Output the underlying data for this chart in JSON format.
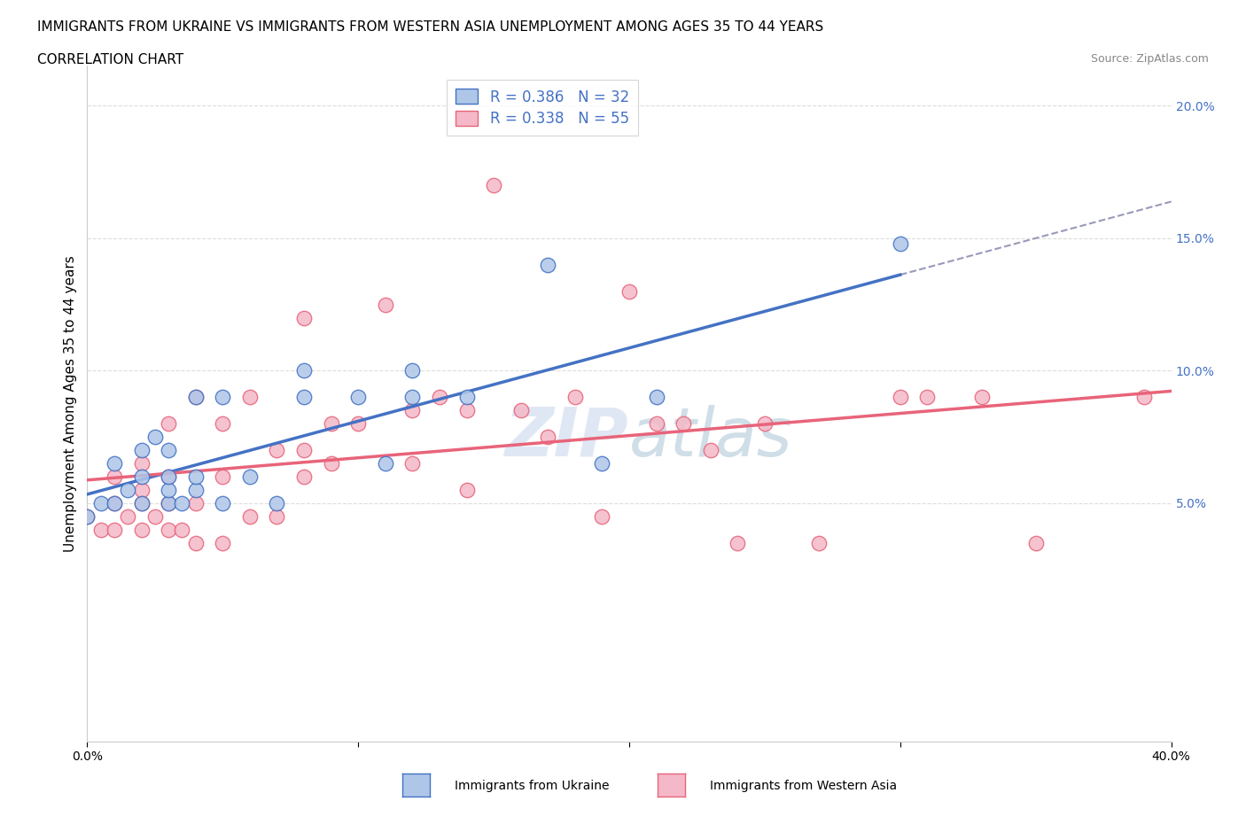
{
  "title_line1": "IMMIGRANTS FROM UKRAINE VS IMMIGRANTS FROM WESTERN ASIA UNEMPLOYMENT AMONG AGES 35 TO 44 YEARS",
  "title_line2": "CORRELATION CHART",
  "source_text": "Source: ZipAtlas.com",
  "ylabel": "Unemployment Among Ages 35 to 44 years",
  "xlim": [
    0.0,
    0.4
  ],
  "ylim": [
    -0.04,
    0.215
  ],
  "ukraine_color": "#aec6e8",
  "ukraine_edge_color": "#4472c4",
  "western_asia_color": "#f4b8c8",
  "western_asia_edge_color": "#e8647a",
  "ukraine_R": 0.386,
  "ukraine_N": 32,
  "western_asia_R": 0.338,
  "western_asia_N": 55,
  "legend_R_color": "#4472c4",
  "watermark": "ZIPatlas",
  "ukraine_scatter_x": [
    0.0,
    0.005,
    0.01,
    0.01,
    0.015,
    0.02,
    0.02,
    0.02,
    0.025,
    0.03,
    0.03,
    0.03,
    0.03,
    0.035,
    0.04,
    0.04,
    0.04,
    0.05,
    0.05,
    0.06,
    0.07,
    0.08,
    0.08,
    0.1,
    0.11,
    0.12,
    0.12,
    0.14,
    0.17,
    0.19,
    0.21,
    0.3
  ],
  "ukraine_scatter_y": [
    0.045,
    0.05,
    0.05,
    0.065,
    0.055,
    0.05,
    0.06,
    0.07,
    0.075,
    0.05,
    0.055,
    0.06,
    0.07,
    0.05,
    0.055,
    0.06,
    0.09,
    0.05,
    0.09,
    0.06,
    0.05,
    0.09,
    0.1,
    0.09,
    0.065,
    0.09,
    0.1,
    0.09,
    0.14,
    0.065,
    0.09,
    0.148
  ],
  "western_asia_scatter_x": [
    0.0,
    0.005,
    0.01,
    0.01,
    0.01,
    0.015,
    0.02,
    0.02,
    0.02,
    0.02,
    0.025,
    0.03,
    0.03,
    0.03,
    0.03,
    0.035,
    0.04,
    0.04,
    0.04,
    0.05,
    0.05,
    0.05,
    0.06,
    0.06,
    0.07,
    0.07,
    0.08,
    0.08,
    0.08,
    0.09,
    0.09,
    0.1,
    0.11,
    0.12,
    0.12,
    0.13,
    0.14,
    0.14,
    0.15,
    0.16,
    0.17,
    0.18,
    0.19,
    0.2,
    0.21,
    0.22,
    0.23,
    0.24,
    0.25,
    0.27,
    0.3,
    0.31,
    0.33,
    0.35,
    0.39
  ],
  "western_asia_scatter_y": [
    0.045,
    0.04,
    0.04,
    0.05,
    0.06,
    0.045,
    0.04,
    0.05,
    0.055,
    0.065,
    0.045,
    0.04,
    0.05,
    0.06,
    0.08,
    0.04,
    0.035,
    0.05,
    0.09,
    0.035,
    0.06,
    0.08,
    0.045,
    0.09,
    0.045,
    0.07,
    0.06,
    0.07,
    0.12,
    0.065,
    0.08,
    0.08,
    0.125,
    0.065,
    0.085,
    0.09,
    0.055,
    0.085,
    0.17,
    0.085,
    0.075,
    0.09,
    0.045,
    0.13,
    0.08,
    0.08,
    0.07,
    0.035,
    0.08,
    0.035,
    0.09,
    0.09,
    0.09,
    0.035,
    0.09
  ],
  "grid_color": "#dddddd",
  "background_color": "#ffffff",
  "title_fontsize": 11,
  "axis_label_fontsize": 11,
  "tick_fontsize": 10,
  "legend_fontsize": 12,
  "ukraine_line_xmax": 0.3,
  "dashed_line_color": "#aaaacc"
}
